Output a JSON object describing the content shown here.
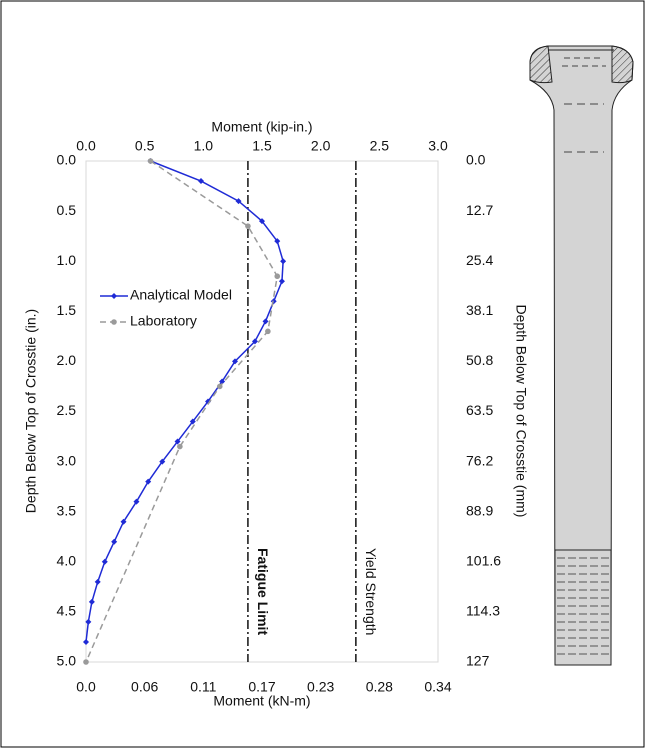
{
  "chart_data": {
    "type": "line",
    "xlabel": "Moment (kip-in.)",
    "x2label": "Moment (kN-m)",
    "ylabel": "Depth Below Top of Crosstie (in.)",
    "y2label": "Depth Below Top of Crosstie (mm)",
    "xlim": [
      0,
      3.0
    ],
    "xticks": [
      {
        "value": 0,
        "label": "0.0"
      },
      0.5,
      {
        "value": 1,
        "label": "1.0"
      },
      1.5,
      {
        "value": 2,
        "label": "2.0"
      },
      2.5,
      {
        "value": 3,
        "label": "3.0"
      }
    ],
    "x2lim": [
      0,
      0.339
    ],
    "x2ticks": [
      {
        "value": 0,
        "label": "0.0"
      },
      {
        "value": 0.0565,
        "label": "0.06"
      },
      {
        "value": 0.113,
        "label": "0.11"
      },
      {
        "value": 0.1695,
        "label": "0.17"
      },
      {
        "value": 0.226,
        "label": "0.23"
      },
      {
        "value": 0.2825,
        "label": "0.28"
      },
      {
        "value": 0.339,
        "label": "0.34"
      }
    ],
    "ylim": [
      0,
      5.0
    ],
    "yticks": [
      {
        "value": 0,
        "label": "0.0"
      },
      0.5,
      {
        "value": 1,
        "label": "1.0"
      },
      1.5,
      {
        "value": 2,
        "label": "2.0"
      },
      2.5,
      {
        "value": 3,
        "label": "3.0"
      },
      3.5,
      {
        "value": 4,
        "label": "4.0"
      },
      4.5,
      {
        "value": 5,
        "label": "5.0"
      }
    ],
    "y2lim": [
      0,
      127
    ],
    "y2ticks": [
      {
        "value": 0,
        "label": "0.0"
      },
      12.7,
      25.4,
      38.1,
      50.8,
      63.5,
      76.2,
      88.9,
      101.6,
      114.3,
      127
    ],
    "y_inverted": true,
    "series": [
      {
        "name": "Analytical Model",
        "color": "#1f2bd6",
        "line_style": "solid",
        "marker": "diamond",
        "depth": [
          0,
          0.2,
          0.4,
          0.6,
          0.8,
          1.0,
          1.2,
          1.4,
          1.6,
          1.8,
          2.0,
          2.2,
          2.4,
          2.6,
          2.8,
          3.0,
          3.2,
          3.4,
          3.6,
          3.8,
          4.0,
          4.2,
          4.4,
          4.6,
          4.8
        ],
        "values": [
          0.55,
          0.98,
          1.3,
          1.5,
          1.63,
          1.68,
          1.67,
          1.6,
          1.53,
          1.44,
          1.27,
          1.16,
          1.04,
          0.91,
          0.78,
          0.65,
          0.53,
          0.43,
          0.32,
          0.24,
          0.16,
          0.1,
          0.05,
          0.02,
          0
        ]
      },
      {
        "name": "Laboratory",
        "color": "#9a9a9a",
        "line_style": "dashed",
        "marker": "circle",
        "depth": [
          0,
          0.65,
          1.15,
          1.7,
          2.25,
          2.85,
          5.0
        ],
        "values": [
          0.55,
          1.38,
          1.63,
          1.55,
          1.14,
          0.8,
          0
        ]
      }
    ],
    "reference_lines": [
      {
        "value": 1.38,
        "label": "Fatigue Limit",
        "bold": true
      },
      {
        "value": 2.3,
        "label": "Yield Strength",
        "bold": false
      }
    ]
  }
}
